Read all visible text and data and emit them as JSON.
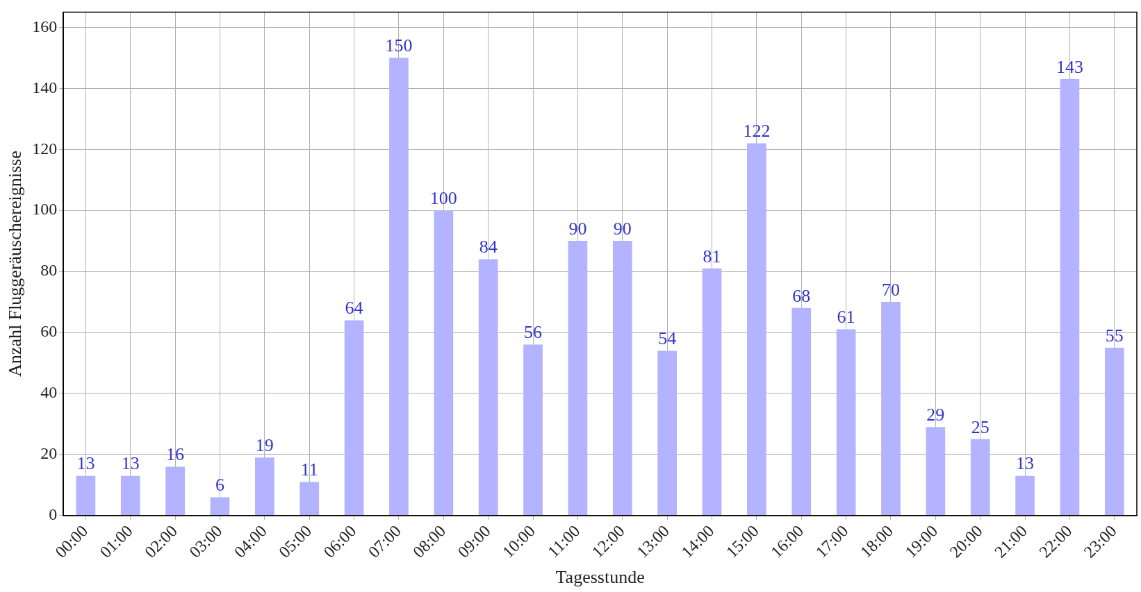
{
  "chart_data": {
    "type": "bar",
    "xlabel": "Tagesstunde",
    "ylabel": "Anzahl Fluggeräuschereignisse",
    "categories": [
      "00:00",
      "01:00",
      "02:00",
      "03:00",
      "04:00",
      "05:00",
      "06:00",
      "07:00",
      "08:00",
      "09:00",
      "10:00",
      "11:00",
      "12:00",
      "13:00",
      "14:00",
      "15:00",
      "16:00",
      "17:00",
      "18:00",
      "19:00",
      "20:00",
      "21:00",
      "22:00",
      "23:00"
    ],
    "values": [
      13,
      13,
      16,
      6,
      19,
      11,
      64,
      150,
      100,
      84,
      56,
      90,
      90,
      54,
      81,
      122,
      68,
      61,
      70,
      29,
      25,
      13,
      143,
      55
    ],
    "color": "#b3b3ff",
    "ylim": [
      0,
      165
    ],
    "yticks": [
      0,
      20,
      40,
      60,
      80,
      100,
      120,
      140,
      160
    ],
    "grid": true,
    "data_labels": true
  }
}
